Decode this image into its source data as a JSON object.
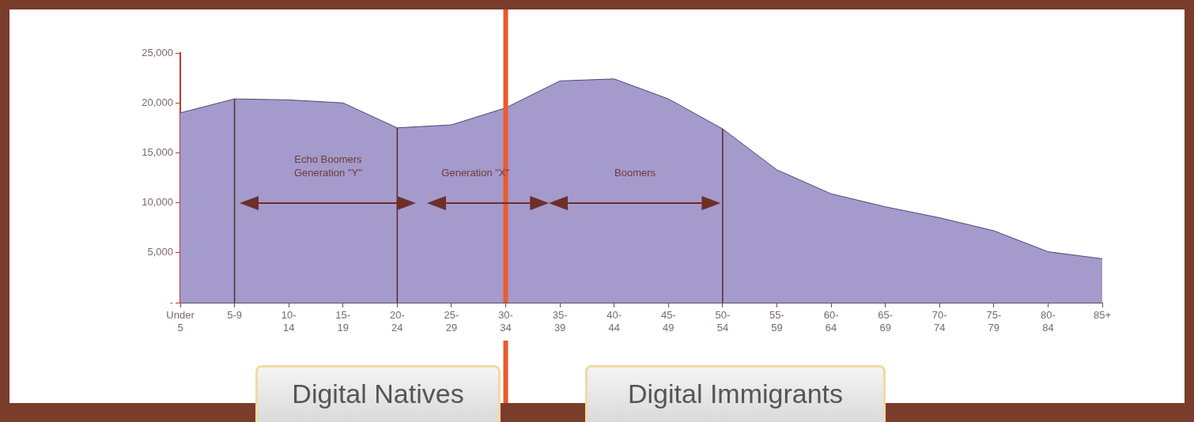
{
  "chart_data": {
    "type": "area",
    "categories": [
      "Under 5",
      "5-9",
      "10-14",
      "15-19",
      "20-24",
      "25-29",
      "30-34",
      "35-39",
      "40-44",
      "45-49",
      "50-54",
      "55-59",
      "60-64",
      "65-69",
      "70-74",
      "75-79",
      "80-84",
      "85+"
    ],
    "values": [
      19000,
      20400,
      20300,
      20000,
      17500,
      17800,
      19500,
      22200,
      22400,
      20400,
      17400,
      13300,
      10900,
      9600,
      8500,
      7200,
      5100,
      4400
    ],
    "color": "#a49bcc",
    "ylim": [
      0,
      25000
    ],
    "yticks": [
      {
        "value": 0,
        "label": "-"
      },
      {
        "value": 5000,
        "label": "5,000"
      },
      {
        "value": 10000,
        "label": "10,000"
      },
      {
        "value": 15000,
        "label": "15,000"
      },
      {
        "value": 20000,
        "label": "20,000"
      },
      {
        "value": 25000,
        "label": "25,000"
      }
    ],
    "grid": false,
    "legend": false,
    "ref_lines": [
      {
        "axis": "x",
        "value": "5-9",
        "color": "#5a2a2a"
      },
      {
        "axis": "x",
        "value": "20-24",
        "color": "#5a2a2a"
      },
      {
        "axis": "x",
        "value": "50-54",
        "color": "#5a2a2a"
      },
      {
        "axis": "x",
        "value": "30-34",
        "color": "#ec5a2c"
      }
    ],
    "annotations": [
      "Echo Boomers Generation \"Y\"",
      "Generation \"X\"",
      "Boomers",
      "Digital Natives",
      "Digital Immigrants"
    ]
  }
}
